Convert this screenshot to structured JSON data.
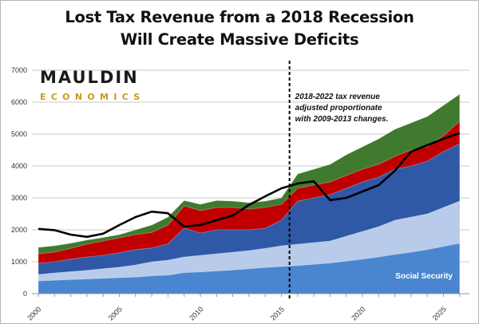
{
  "chart_data": {
    "type": "area",
    "title": "Lost Tax Revenue from a 2018 Recession\nWill Create Massive Deficits",
    "title_lines": [
      "Lost Tax Revenue from a 2018 Recession",
      "Will Create Massive Deficits"
    ],
    "xlabel": "",
    "ylabel": "",
    "xlim": [
      2000,
      2026
    ],
    "ylim": [
      0,
      7000
    ],
    "yticks": [
      0,
      1000,
      2000,
      3000,
      4000,
      5000,
      6000,
      7000
    ],
    "xticks": [
      2000,
      2005,
      2010,
      2015,
      2020,
      2025
    ],
    "grid": true,
    "stacked": true,
    "x": [
      2000,
      2001,
      2002,
      2003,
      2004,
      2005,
      2006,
      2007,
      2008,
      2009,
      2010,
      2011,
      2012,
      2013,
      2014,
      2015,
      2016,
      2017,
      2018,
      2019,
      2020,
      2021,
      2022,
      2023,
      2024,
      2025,
      2026
    ],
    "series_cumulative_tops": [
      {
        "name": "Social Security",
        "color": "#4a86d0",
        "values": [
          400,
          420,
          440,
          460,
          480,
          500,
          520,
          560,
          580,
          660,
          680,
          710,
          740,
          780,
          820,
          850,
          880,
          920,
          960,
          1020,
          1080,
          1150,
          1230,
          1300,
          1380,
          1480,
          1580
        ]
      },
      {
        "color": "#b9cbea",
        "values": [
          600,
          650,
          690,
          730,
          780,
          830,
          900,
          1000,
          1050,
          1150,
          1200,
          1250,
          1300,
          1350,
          1420,
          1500,
          1550,
          1600,
          1650,
          1800,
          1950,
          2100,
          2300,
          2400,
          2500,
          2700,
          2900
        ]
      },
      {
        "color": "#2f58a6",
        "values": [
          950,
          1000,
          1080,
          1150,
          1200,
          1280,
          1380,
          1430,
          1560,
          2050,
          1900,
          2000,
          2000,
          2000,
          2050,
          2300,
          2900,
          3000,
          3100,
          3300,
          3500,
          3650,
          3900,
          4000,
          4150,
          4450,
          4700
        ]
      },
      {
        "color": "#c00000",
        "values": [
          1250,
          1300,
          1420,
          1550,
          1650,
          1750,
          1850,
          1920,
          2150,
          2750,
          2600,
          2700,
          2700,
          2650,
          2700,
          2800,
          3300,
          3400,
          3500,
          3700,
          3900,
          4050,
          4300,
          4500,
          4600,
          4950,
          5400
        ]
      },
      {
        "color": "#3f7a2e",
        "values": [
          1450,
          1500,
          1580,
          1680,
          1760,
          1850,
          2000,
          2150,
          2400,
          2920,
          2800,
          2920,
          2900,
          2850,
          2900,
          3000,
          3750,
          3900,
          4050,
          4350,
          4600,
          4850,
          5150,
          5350,
          5550,
          5900,
          6250
        ]
      }
    ],
    "line": {
      "color": "#000000",
      "values": [
        2030,
        1990,
        1850,
        1780,
        1880,
        2150,
        2400,
        2570,
        2520,
        2100,
        2150,
        2300,
        2450,
        2780,
        3050,
        3300,
        3450,
        3520,
        2930,
        3000,
        3200,
        3400,
        3850,
        4450,
        4650,
        4850,
        5030
      ]
    },
    "vline_x": 2015.5,
    "annotation": [
      "2018-2022 tax revenue",
      "adjusted proportionate",
      "with 2009-2013 changes."
    ],
    "series_label": "Social Security"
  },
  "logo": {
    "line1": "MAULDIN",
    "line2": "ECONOMICS"
  }
}
